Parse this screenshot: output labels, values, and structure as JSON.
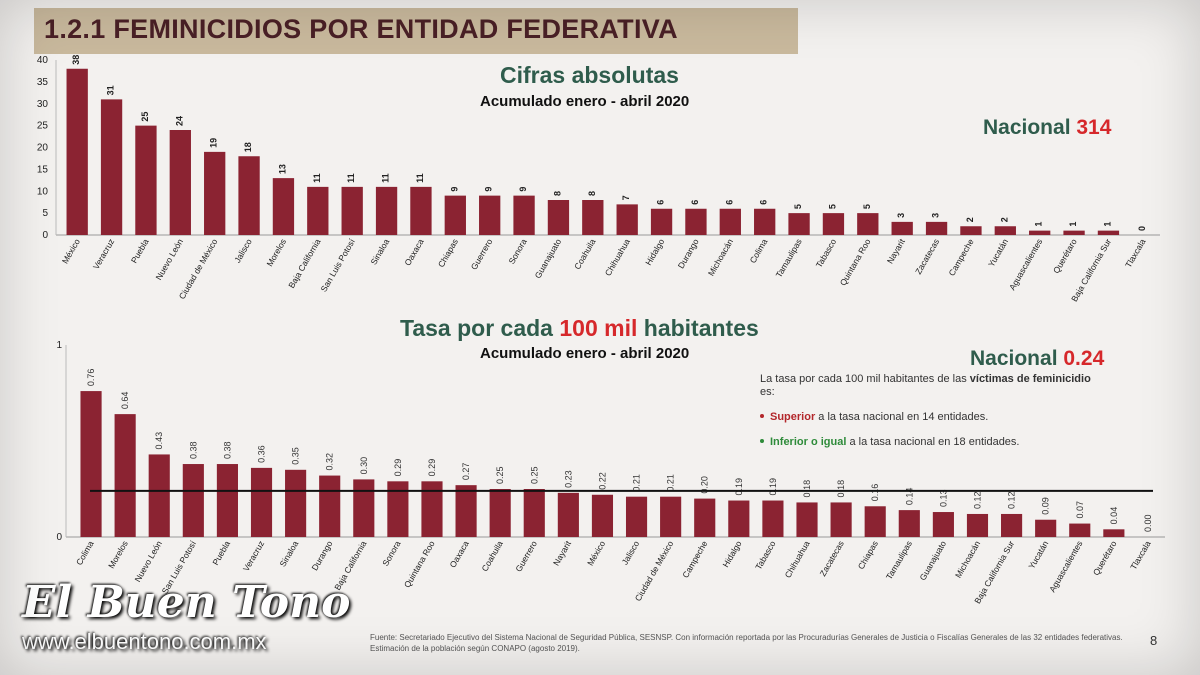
{
  "slide": {
    "title": "1.2.1 FEMINICIDIOS POR ENTIDAD FEDERATIVA",
    "page_number": "8",
    "footer": "Fuente: Secretariado Ejecutivo del Sistema Nacional de Seguridad Pública, SESNSP. Con información reportada por las Procuradurías Generales de Justicia o Fiscalías Generales de las 32 entidades federativas. Estimación de la población según CONAPO (agosto 2019).",
    "watermark_brand": "El Buen Tono",
    "watermark_url": "www.elbuentono.com.mx"
  },
  "top_chart_header": {
    "title": "Cifras absolutas",
    "subtitle": "Acumulado enero - abril 2020",
    "national_label": "Nacional",
    "national_value": "314"
  },
  "bottom_chart_header": {
    "title_part1": "Tasa por cada",
    "title_highlight": "100 mil",
    "title_part2": "habitantes",
    "subtitle": "Acumulado enero - abril 2020",
    "national_label": "Nacional",
    "national_value": "0.24"
  },
  "legend": {
    "intro_text": "La tasa por cada 100 mil habitantes de las",
    "intro_bold": "víctimas de feminicidio",
    "intro_end": "es:",
    "superior_label": "Superior",
    "superior_text": "a la tasa nacional en 14 entidades.",
    "inferior_label": "Inferior o igual",
    "inferior_text": "a la tasa nacional en 18 entidades."
  },
  "colors": {
    "bar": "#8b2332",
    "superior": "#b3272b",
    "inferior": "#2e8b3a",
    "national_value": "#d6282b",
    "title_green": "#2f5c4c"
  },
  "chart_data": [
    {
      "type": "bar",
      "title": "Cifras absolutas",
      "subtitle": "Acumulado enero - abril 2020",
      "ylim": [
        0,
        40
      ],
      "yticks": [
        0,
        5,
        10,
        15,
        20,
        25,
        30,
        35,
        40
      ],
      "categories": [
        "México",
        "Veracruz",
        "Puebla",
        "Nuevo León",
        "Ciudad de México",
        "Jalisco",
        "Morelos",
        "Baja California",
        "San Luis Potosí",
        "Sinaloa",
        "Oaxaca",
        "Chiapas",
        "Guerrero",
        "Sonora",
        "Guanajuato",
        "Coahuila",
        "Chihuahua",
        "Hidalgo",
        "Durango",
        "Michoacán",
        "Colima",
        "Tamaulipas",
        "Tabasco",
        "Quintana Roo",
        "Nayarit",
        "Zacatecas",
        "Campeche",
        "Yucatán",
        "Aguascalientes",
        "Querétaro",
        "Baja California Sur",
        "Tlaxcala"
      ],
      "values": [
        38,
        31,
        25,
        24,
        19,
        18,
        13,
        11,
        11,
        11,
        11,
        9,
        9,
        9,
        8,
        8,
        7,
        6,
        6,
        6,
        6,
        5,
        5,
        5,
        3,
        3,
        2,
        2,
        1,
        1,
        1,
        0
      ]
    },
    {
      "type": "bar",
      "title": "Tasa por cada 100 mil habitantes",
      "subtitle": "Acumulado enero - abril 2020",
      "ylim": [
        0,
        1
      ],
      "yticks": [
        0,
        1
      ],
      "reference_line": 0.24,
      "categories": [
        "Colima",
        "Morelos",
        "Nuevo León",
        "San Luis Potosí",
        "Puebla",
        "Veracruz",
        "Sinaloa",
        "Durango",
        "Baja California",
        "Sonora",
        "Quintana Roo",
        "Oaxaca",
        "Coahuila",
        "Guerrero",
        "Nayarit",
        "México",
        "Jalisco",
        "Ciudad de México",
        "Campeche",
        "Hidalgo",
        "Tabasco",
        "Chihuahua",
        "Zacatecas",
        "Chiapas",
        "Tamaulipas",
        "Guanajuato",
        "Michoacán",
        "Baja California Sur",
        "Yucatán",
        "Aguascalientes",
        "Querétaro",
        "Tlaxcala"
      ],
      "values": [
        0.76,
        0.64,
        0.43,
        0.38,
        0.38,
        0.36,
        0.35,
        0.32,
        0.3,
        0.29,
        0.29,
        0.27,
        0.25,
        0.25,
        0.23,
        0.22,
        0.21,
        0.21,
        0.2,
        0.19,
        0.19,
        0.18,
        0.18,
        0.16,
        0.14,
        0.13,
        0.12,
        0.12,
        0.09,
        0.07,
        0.04,
        0.0
      ],
      "value_labels": [
        "0.76",
        "0.64",
        "0.43",
        "0.38",
        "0.38",
        "0.36",
        "0.35",
        "0.32",
        "0.30",
        "0.29",
        "0.29",
        "0.27",
        "0.25",
        "0.25",
        "0.23",
        "0.22",
        "0.21",
        "0.21",
        "0.20",
        "0.19",
        "0.19",
        "0.18",
        "0.18",
        "0.16",
        "0.14",
        "0.13",
        "0.12",
        "0.12",
        "0.09",
        "0.07",
        "0.04",
        "0.00"
      ]
    }
  ]
}
